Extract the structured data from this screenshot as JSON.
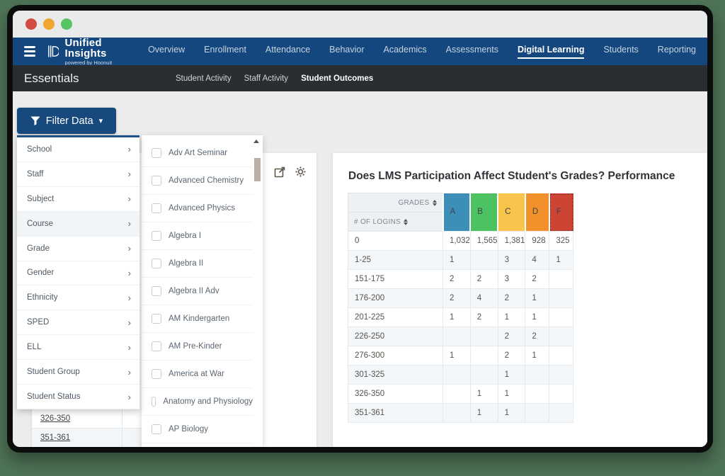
{
  "window": {
    "traffic_lights": [
      "close",
      "minimize",
      "zoom"
    ]
  },
  "brand": {
    "title": "Unified Insights",
    "subtitle": "powered by Hoonuit"
  },
  "topnav": {
    "items": [
      {
        "label": "Overview",
        "active": false
      },
      {
        "label": "Enrollment",
        "active": false
      },
      {
        "label": "Attendance",
        "active": false
      },
      {
        "label": "Behavior",
        "active": false
      },
      {
        "label": "Academics",
        "active": false
      },
      {
        "label": "Assessments",
        "active": false
      },
      {
        "label": "Digital Learning",
        "active": true
      },
      {
        "label": "Students",
        "active": false
      },
      {
        "label": "Reporting",
        "active": false
      }
    ]
  },
  "subnav": {
    "title": "Essentials",
    "items": [
      {
        "label": "Student Activity",
        "active": false
      },
      {
        "label": "Staff Activity",
        "active": false
      },
      {
        "label": "Student Outcomes",
        "active": true
      }
    ]
  },
  "filter": {
    "button_label": "Filter Data",
    "categories": [
      {
        "label": "School",
        "active": false
      },
      {
        "label": "Staff",
        "active": false
      },
      {
        "label": "Subject",
        "active": false
      },
      {
        "label": "Course",
        "active": true
      },
      {
        "label": "Grade",
        "active": false
      },
      {
        "label": "Gender",
        "active": false
      },
      {
        "label": "Ethnicity",
        "active": false
      },
      {
        "label": "SPED",
        "active": false
      },
      {
        "label": "ELL",
        "active": false
      },
      {
        "label": "Student Group",
        "active": false
      },
      {
        "label": "Student Status",
        "active": false
      }
    ],
    "course_options": [
      {
        "label": "Adv Art Seminar",
        "checked": false
      },
      {
        "label": "Advanced Chemistry",
        "checked": false
      },
      {
        "label": "Advanced Physics",
        "checked": false
      },
      {
        "label": "Algebra I",
        "checked": false
      },
      {
        "label": "Algebra II",
        "checked": false
      },
      {
        "label": "Algebra II Adv",
        "checked": false
      },
      {
        "label": "AM Kindergarten",
        "checked": false
      },
      {
        "label": "AM Pre-Kinder",
        "checked": false
      },
      {
        "label": "America at War",
        "checked": false
      },
      {
        "label": "Anatomy and Physiology",
        "checked": false
      },
      {
        "label": "AP Biology",
        "checked": false
      }
    ]
  },
  "left_card": {
    "row_links": [
      "326-350",
      "351-361"
    ]
  },
  "report": {
    "title": "Does LMS Participation Affect Student's Grades? Performance",
    "chart_data": {
      "type": "table",
      "title": "Does LMS Participation Affect Student's Grades? Performance",
      "col_group_label": "GRADES",
      "row_group_label": "# OF LOGINS",
      "grade_columns": [
        {
          "letter": "A",
          "color": "#3D8EB9",
          "selected": false
        },
        {
          "letter": "B",
          "color": "#4CC262",
          "selected": false
        },
        {
          "letter": "C",
          "color": "#F8C44C",
          "selected": false
        },
        {
          "letter": "D",
          "color": "#F2902C",
          "selected": false
        },
        {
          "letter": "F",
          "color": "#CE4434",
          "selected": true
        }
      ],
      "rows": [
        {
          "range": "0",
          "values": [
            "1,032",
            "1,565",
            "1,381",
            "928",
            "325"
          ]
        },
        {
          "range": "1-25",
          "values": [
            "1",
            "",
            "3",
            "4",
            "1"
          ]
        },
        {
          "range": "151-175",
          "values": [
            "2",
            "2",
            "3",
            "2",
            ""
          ]
        },
        {
          "range": "176-200",
          "values": [
            "2",
            "4",
            "2",
            "1",
            ""
          ]
        },
        {
          "range": "201-225",
          "values": [
            "1",
            "2",
            "1",
            "1",
            ""
          ]
        },
        {
          "range": "226-250",
          "values": [
            "",
            "",
            "2",
            "2",
            ""
          ]
        },
        {
          "range": "276-300",
          "values": [
            "1",
            "",
            "2",
            "1",
            ""
          ]
        },
        {
          "range": "301-325",
          "values": [
            "",
            "",
            "1",
            "",
            ""
          ]
        },
        {
          "range": "326-350",
          "values": [
            "",
            "1",
            "1",
            "",
            ""
          ]
        },
        {
          "range": "351-361",
          "values": [
            "",
            "1",
            "1",
            "",
            ""
          ]
        }
      ]
    }
  },
  "icons": {
    "menu": "hamburger",
    "filter": "funnel",
    "caret": "▾",
    "chevron": "›",
    "export": "open-external",
    "settings": "gear",
    "sort": "up-down-arrows"
  },
  "colors": {
    "navbar": "#14477d",
    "subbar": "#2a2d31",
    "page_background": "#4e7355",
    "filter_button": "#17497c",
    "grade_a": "#3D8EB9",
    "grade_b": "#4CC262",
    "grade_c": "#F8C44C",
    "grade_d": "#F2902C",
    "grade_f": "#CE4434"
  }
}
